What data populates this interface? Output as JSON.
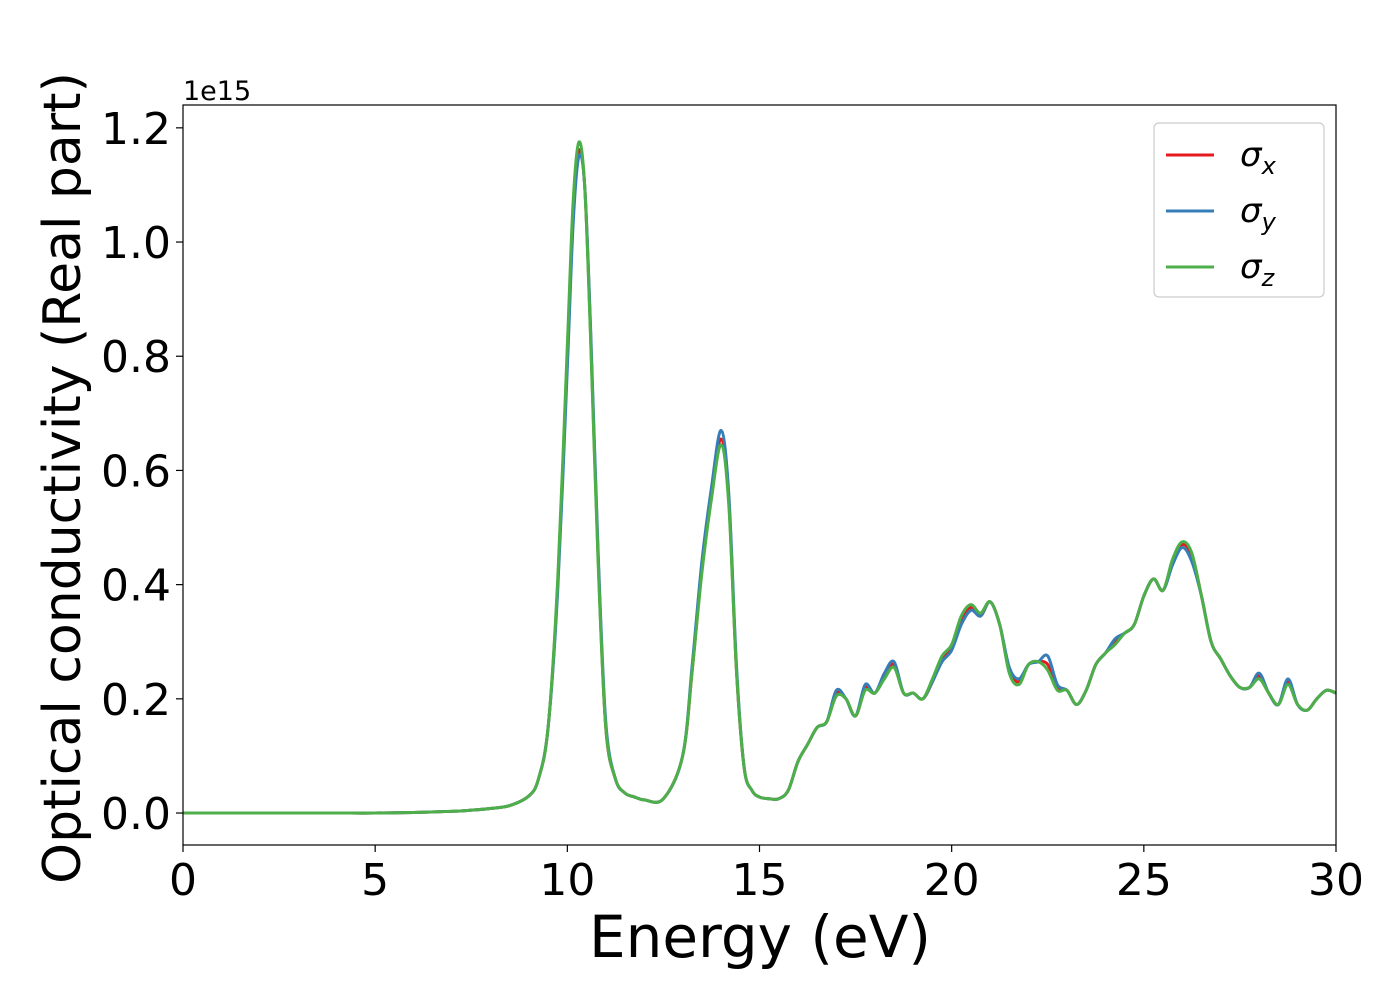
{
  "chart_data": {
    "type": "line",
    "x_label": "Energy (eV)",
    "y_label": "Optical conductivity (Real part)",
    "y_offset_label": "1e15",
    "x": [
      0,
      1,
      2,
      3,
      4,
      5,
      6,
      7,
      7.5,
      8,
      8.5,
      9,
      9.25,
      9.5,
      9.75,
      10,
      10.15,
      10.3,
      10.45,
      10.6,
      10.8,
      11,
      11.25,
      11.5,
      11.75,
      12,
      12.5,
      13,
      13.25,
      13.5,
      13.75,
      14,
      14.2,
      14.4,
      14.6,
      14.8,
      15,
      15.25,
      15.5,
      15.75,
      16,
      16.25,
      16.5,
      16.75,
      17,
      17.25,
      17.5,
      17.75,
      18,
      18.25,
      18.5,
      18.75,
      19,
      19.25,
      19.5,
      19.75,
      20,
      20.25,
      20.5,
      20.75,
      21,
      21.25,
      21.5,
      21.75,
      22,
      22.25,
      22.5,
      22.75,
      23,
      23.25,
      23.5,
      23.75,
      24,
      24.25,
      24.5,
      24.75,
      25,
      25.25,
      25.5,
      25.75,
      26,
      26.25,
      26.5,
      26.75,
      27,
      27.25,
      27.5,
      27.75,
      28,
      28.25,
      28.5,
      28.75,
      29,
      29.25,
      29.5,
      29.75,
      30
    ],
    "series": [
      {
        "name": "σx",
        "color": "#e41a1c",
        "values": [
          0,
          0,
          0,
          0,
          0,
          0,
          0.001,
          0.003,
          0.005,
          0.008,
          0.013,
          0.03,
          0.06,
          0.15,
          0.4,
          0.8,
          1.05,
          1.16,
          1.1,
          0.85,
          0.45,
          0.15,
          0.06,
          0.035,
          0.028,
          0.023,
          0.025,
          0.1,
          0.25,
          0.43,
          0.56,
          0.655,
          0.55,
          0.25,
          0.08,
          0.04,
          0.028,
          0.025,
          0.025,
          0.04,
          0.09,
          0.12,
          0.15,
          0.16,
          0.21,
          0.2,
          0.17,
          0.22,
          0.21,
          0.24,
          0.26,
          0.21,
          0.21,
          0.2,
          0.23,
          0.27,
          0.29,
          0.335,
          0.36,
          0.345,
          0.37,
          0.33,
          0.25,
          0.23,
          0.26,
          0.265,
          0.26,
          0.22,
          0.215,
          0.19,
          0.215,
          0.26,
          0.28,
          0.3,
          0.315,
          0.33,
          0.38,
          0.41,
          0.39,
          0.44,
          0.47,
          0.45,
          0.38,
          0.3,
          0.27,
          0.24,
          0.22,
          0.22,
          0.24,
          0.21,
          0.19,
          0.23,
          0.19,
          0.18,
          0.2,
          0.215,
          0.21
        ]
      },
      {
        "name": "σy",
        "color": "#377eb8",
        "values": [
          0,
          0,
          0,
          0,
          0,
          0,
          0.001,
          0.003,
          0.005,
          0.008,
          0.013,
          0.03,
          0.06,
          0.15,
          0.39,
          0.78,
          1.03,
          1.15,
          1.1,
          0.86,
          0.46,
          0.16,
          0.06,
          0.035,
          0.028,
          0.023,
          0.025,
          0.1,
          0.26,
          0.44,
          0.57,
          0.67,
          0.56,
          0.26,
          0.08,
          0.04,
          0.028,
          0.025,
          0.025,
          0.04,
          0.09,
          0.12,
          0.15,
          0.16,
          0.215,
          0.2,
          0.17,
          0.225,
          0.21,
          0.245,
          0.265,
          0.21,
          0.21,
          0.2,
          0.23,
          0.265,
          0.285,
          0.33,
          0.355,
          0.345,
          0.37,
          0.33,
          0.255,
          0.235,
          0.26,
          0.265,
          0.275,
          0.225,
          0.215,
          0.19,
          0.215,
          0.26,
          0.28,
          0.305,
          0.315,
          0.33,
          0.38,
          0.41,
          0.39,
          0.435,
          0.465,
          0.44,
          0.38,
          0.3,
          0.27,
          0.24,
          0.22,
          0.22,
          0.245,
          0.21,
          0.19,
          0.235,
          0.19,
          0.18,
          0.2,
          0.215,
          0.21
        ]
      },
      {
        "name": "σz",
        "color": "#4daf4a",
        "values": [
          0,
          0,
          0,
          0,
          0,
          0,
          0.001,
          0.003,
          0.005,
          0.008,
          0.013,
          0.03,
          0.06,
          0.15,
          0.41,
          0.82,
          1.07,
          1.175,
          1.1,
          0.84,
          0.44,
          0.15,
          0.06,
          0.035,
          0.028,
          0.023,
          0.025,
          0.1,
          0.25,
          0.42,
          0.55,
          0.645,
          0.54,
          0.25,
          0.08,
          0.04,
          0.028,
          0.025,
          0.025,
          0.04,
          0.09,
          0.12,
          0.15,
          0.16,
          0.205,
          0.2,
          0.17,
          0.215,
          0.21,
          0.235,
          0.255,
          0.21,
          0.21,
          0.2,
          0.235,
          0.275,
          0.295,
          0.345,
          0.365,
          0.35,
          0.37,
          0.33,
          0.245,
          0.225,
          0.26,
          0.265,
          0.25,
          0.215,
          0.215,
          0.19,
          0.215,
          0.26,
          0.28,
          0.295,
          0.315,
          0.33,
          0.38,
          0.41,
          0.39,
          0.445,
          0.475,
          0.455,
          0.38,
          0.3,
          0.27,
          0.24,
          0.22,
          0.22,
          0.235,
          0.21,
          0.19,
          0.225,
          0.19,
          0.18,
          0.2,
          0.215,
          0.21
        ]
      }
    ],
    "xlim": [
      0,
      30
    ],
    "xticks": [
      0,
      5,
      10,
      15,
      20,
      25,
      30
    ],
    "ylim": [
      -0.056,
      1.24
    ],
    "yticks": [
      {
        "value": 0,
        "label": "0.0"
      },
      0.2,
      0.4,
      0.6,
      0.8,
      {
        "value": 1,
        "label": "1.0"
      },
      1.2
    ],
    "legend": "upper right",
    "grid": false
  }
}
